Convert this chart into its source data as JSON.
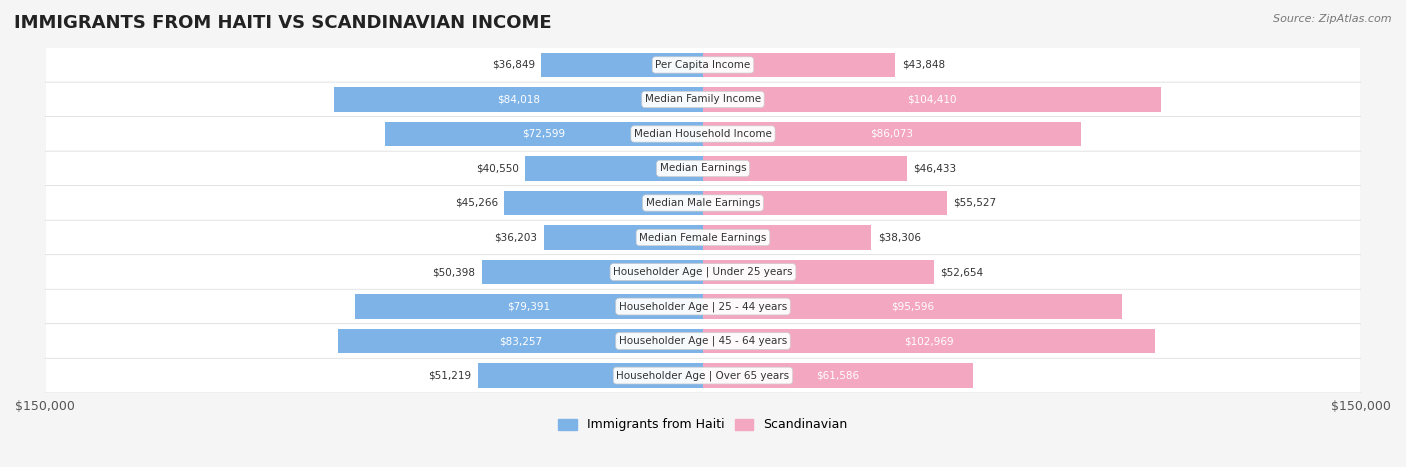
{
  "title": "IMMIGRANTS FROM HAITI VS SCANDINAVIAN INCOME",
  "source": "Source: ZipAtlas.com",
  "categories": [
    "Per Capita Income",
    "Median Family Income",
    "Median Household Income",
    "Median Earnings",
    "Median Male Earnings",
    "Median Female Earnings",
    "Householder Age | Under 25 years",
    "Householder Age | 25 - 44 years",
    "Householder Age | 45 - 64 years",
    "Householder Age | Over 65 years"
  ],
  "haiti_values": [
    36849,
    84018,
    72599,
    40550,
    45266,
    36203,
    50398,
    79391,
    83257,
    51219
  ],
  "scand_values": [
    43848,
    104410,
    86073,
    46433,
    55527,
    38306,
    52654,
    95596,
    102969,
    61586
  ],
  "haiti_labels": [
    "$36,849",
    "$84,018",
    "$72,599",
    "$40,550",
    "$45,266",
    "$36,203",
    "$50,398",
    "$79,391",
    "$83,257",
    "$51,219"
  ],
  "scand_labels": [
    "$43,848",
    "$104,410",
    "$86,073",
    "$46,433",
    "$55,527",
    "$38,306",
    "$52,654",
    "$95,596",
    "$102,969",
    "$61,586"
  ],
  "haiti_color": "#7EB3E8",
  "haiti_color_dark": "#5B9BD5",
  "scand_color": "#F4A7C0",
  "scand_color_dark": "#F06292",
  "xlim": 150000,
  "background_color": "#f5f5f5",
  "row_bg_color": "#ffffff",
  "label_color_dark": "#ffffff",
  "label_color_light": "#555555",
  "threshold_dark": 60000
}
